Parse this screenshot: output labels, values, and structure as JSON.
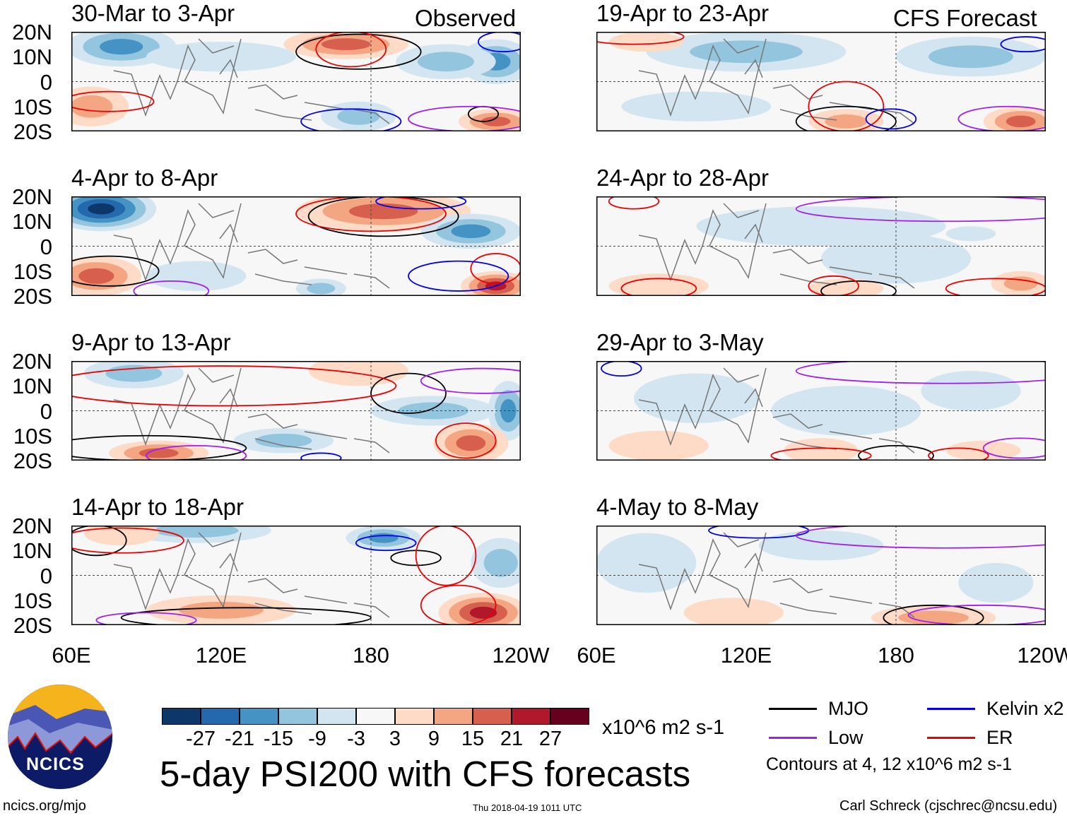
{
  "header": {
    "observed_label": "Observed",
    "forecast_label": "CFS Forecast"
  },
  "axes": {
    "y_ticks": [
      "20N",
      "10N",
      "0",
      "10S",
      "20S"
    ],
    "x_ticks": [
      "60E",
      "120E",
      "180",
      "120W"
    ],
    "lon_range": [
      60,
      240
    ],
    "lat_range": [
      -20,
      20
    ]
  },
  "colors": {
    "levels": [
      "#0c3768",
      "#2468ad",
      "#4493c4",
      "#93c5de",
      "#d2e5f0",
      "#f7f7f7",
      "#fddbc7",
      "#f4a582",
      "#d6604d",
      "#b2182b",
      "#67001f"
    ],
    "mjo": "#000000",
    "kelvin": "#0000ee",
    "low": "#a020f0",
    "er": "#ee0000"
  },
  "chart_data": {
    "type": "heatmap",
    "title": "5-day PSI200 with CFS forecasts",
    "units": "x10^6 m2 s-1",
    "colorbar_ticks": [
      "-27",
      "-21",
      "-15",
      "-9",
      "-3",
      "3",
      "9",
      "15",
      "21",
      "27"
    ],
    "panels": [
      {
        "label": "30-Mar to 3-Apr",
        "column": "observed",
        "anoms": [
          [
            80,
            14,
            22,
            8,
            -15
          ],
          [
            170,
            15,
            25,
            6,
            18
          ],
          [
            230,
            8,
            15,
            9,
            -15
          ],
          [
            210,
            8,
            20,
            7,
            -9
          ],
          [
            68,
            -10,
            15,
            8,
            12
          ],
          [
            230,
            -16,
            15,
            5,
            18
          ],
          [
            175,
            -14,
            15,
            6,
            -9
          ],
          [
            120,
            10,
            30,
            6,
            -3
          ]
        ],
        "contours": [
          [
            "mjo",
            175,
            12,
            25,
            7
          ],
          [
            "mjo",
            225,
            -13,
            6,
            3
          ],
          [
            "er",
            172,
            13,
            14,
            7
          ],
          [
            "er",
            75,
            -8,
            18,
            4
          ],
          [
            "kelvin",
            172,
            -16,
            20,
            5
          ],
          [
            "kelvin",
            233,
            16,
            10,
            4
          ],
          [
            "low",
            220,
            -15,
            25,
            5
          ]
        ]
      },
      {
        "label": "4-Apr to 8-Apr",
        "column": "observed",
        "anoms": [
          [
            72,
            15,
            22,
            9,
            -27
          ],
          [
            185,
            14,
            35,
            8,
            18
          ],
          [
            220,
            6,
            20,
            7,
            -15
          ],
          [
            70,
            -12,
            18,
            8,
            15
          ],
          [
            230,
            -16,
            14,
            6,
            22
          ],
          [
            160,
            -17,
            10,
            4,
            -9
          ],
          [
            110,
            -12,
            20,
            6,
            -3
          ]
        ],
        "contours": [
          [
            "mjo",
            185,
            12,
            30,
            8
          ],
          [
            "mjo",
            75,
            -10,
            20,
            6
          ],
          [
            "er",
            180,
            13,
            30,
            7
          ],
          [
            "er",
            230,
            -9,
            10,
            6
          ],
          [
            "kelvin",
            215,
            -12,
            20,
            6
          ],
          [
            "kelvin",
            200,
            18,
            18,
            3
          ],
          [
            "low",
            100,
            -18,
            15,
            4
          ]
        ]
      },
      {
        "label": "9-Apr to 13-Apr",
        "column": "observed",
        "anoms": [
          [
            85,
            15,
            20,
            6,
            -9
          ],
          [
            175,
            16,
            20,
            6,
            6
          ],
          [
            235,
            0,
            8,
            12,
            -15
          ],
          [
            220,
            -13,
            15,
            8,
            15
          ],
          [
            95,
            -17,
            20,
            5,
            15
          ],
          [
            205,
            0,
            25,
            6,
            -9
          ],
          [
            145,
            -12,
            20,
            5,
            -9
          ]
        ],
        "contours": [
          [
            "mjo",
            195,
            7,
            15,
            8
          ],
          [
            "mjo",
            90,
            -15,
            40,
            5
          ],
          [
            "er",
            120,
            10,
            70,
            8
          ],
          [
            "er",
            218,
            -12,
            12,
            7
          ],
          [
            "low",
            110,
            -18,
            20,
            4
          ],
          [
            "low",
            225,
            12,
            25,
            5
          ],
          [
            "kelvin",
            160,
            -19,
            8,
            2
          ]
        ]
      },
      {
        "label": "14-Apr to 18-Apr",
        "column": "observed",
        "anoms": [
          [
            110,
            18,
            30,
            5,
            -9
          ],
          [
            185,
            15,
            15,
            5,
            -15
          ],
          [
            232,
            5,
            12,
            10,
            -9
          ],
          [
            225,
            -15,
            18,
            8,
            22
          ],
          [
            120,
            -14,
            30,
            6,
            9
          ],
          [
            80,
            17,
            15,
            5,
            6
          ]
        ],
        "contours": [
          [
            "mjo",
            70,
            14,
            12,
            6
          ],
          [
            "mjo",
            198,
            7,
            10,
            3
          ],
          [
            "mjo",
            130,
            -17,
            50,
            4
          ],
          [
            "er",
            80,
            14,
            25,
            5
          ],
          [
            "er",
            210,
            8,
            12,
            12
          ],
          [
            "er",
            215,
            -12,
            15,
            8
          ],
          [
            "kelvin",
            186,
            13,
            12,
            3
          ],
          [
            "low",
            90,
            -18,
            20,
            3
          ]
        ]
      },
      {
        "label": "19-Apr to 23-Apr",
        "column": "forecast",
        "anoms": [
          [
            120,
            12,
            40,
            8,
            -9
          ],
          [
            210,
            10,
            30,
            8,
            -9
          ],
          [
            230,
            -16,
            15,
            6,
            15
          ],
          [
            160,
            -16,
            15,
            5,
            9
          ],
          [
            80,
            16,
            15,
            4,
            6
          ],
          [
            100,
            -10,
            30,
            6,
            -3
          ]
        ],
        "contours": [
          [
            "mjo",
            160,
            -16,
            20,
            6
          ],
          [
            "er",
            160,
            -10,
            15,
            10
          ],
          [
            "er",
            75,
            18,
            20,
            3
          ],
          [
            "kelvin",
            178,
            -15,
            10,
            4
          ],
          [
            "kelvin",
            232,
            15,
            10,
            3
          ],
          [
            "low",
            225,
            -15,
            20,
            5
          ]
        ]
      },
      {
        "label": "24-Apr to 28-Apr",
        "column": "forecast",
        "anoms": [
          [
            150,
            8,
            50,
            8,
            -3
          ],
          [
            180,
            -5,
            30,
            10,
            -3
          ],
          [
            230,
            -15,
            12,
            5,
            9
          ],
          [
            85,
            -16,
            20,
            5,
            6
          ],
          [
            160,
            -17,
            15,
            4,
            6
          ],
          [
            210,
            5,
            10,
            3,
            -6
          ]
        ],
        "contours": [
          [
            "mjo",
            165,
            -18,
            15,
            4
          ],
          [
            "er",
            85,
            -17,
            15,
            4
          ],
          [
            "er",
            155,
            -16,
            10,
            4
          ],
          [
            "er",
            220,
            -17,
            20,
            4
          ],
          [
            "low",
            200,
            15,
            60,
            5
          ],
          [
            "er",
            75,
            18,
            10,
            3
          ]
        ]
      },
      {
        "label": "29-Apr to 3-May",
        "column": "forecast",
        "anoms": [
          [
            100,
            5,
            25,
            10,
            -3
          ],
          [
            160,
            0,
            30,
            10,
            -3
          ],
          [
            210,
            8,
            20,
            8,
            -3
          ],
          [
            85,
            -14,
            20,
            6,
            6
          ],
          [
            150,
            -16,
            15,
            5,
            6
          ],
          [
            215,
            -16,
            15,
            4,
            6
          ]
        ],
        "contours": [
          [
            "mjo",
            180,
            -18,
            15,
            4
          ],
          [
            "er",
            150,
            -18,
            20,
            3
          ],
          [
            "er",
            205,
            -18,
            12,
            3
          ],
          [
            "low",
            200,
            16,
            60,
            5
          ],
          [
            "low",
            230,
            -15,
            15,
            4
          ],
          [
            "kelvin",
            70,
            17,
            8,
            3
          ]
        ]
      },
      {
        "label": "4-May to 8-May",
        "column": "forecast",
        "anoms": [
          [
            80,
            5,
            20,
            12,
            -3
          ],
          [
            220,
            -3,
            15,
            8,
            -3
          ],
          [
            195,
            -17,
            25,
            5,
            9
          ],
          [
            115,
            -15,
            20,
            6,
            3
          ],
          [
            150,
            12,
            25,
            6,
            -3
          ]
        ],
        "contours": [
          [
            "mjo",
            195,
            -17,
            20,
            5
          ],
          [
            "kelvin",
            125,
            18,
            20,
            3
          ],
          [
            "low",
            200,
            16,
            60,
            5
          ],
          [
            "low",
            215,
            -16,
            30,
            4
          ]
        ]
      }
    ]
  },
  "colorbar": {
    "units_label": "x10^6 m2 s-1"
  },
  "legend": {
    "items": [
      {
        "key": "mjo",
        "label": "MJO"
      },
      {
        "key": "kelvin",
        "label": "Kelvin x2"
      },
      {
        "key": "low",
        "label": "Low"
      },
      {
        "key": "er",
        "label": "ER"
      }
    ],
    "note": "Contours at 4, 12 x10^6 m2 s-1"
  },
  "logo": {
    "text": "NCICS"
  },
  "footer": {
    "url": "ncics.org/mjo",
    "timestamp": "Thu 2018-04-19 1011 UTC",
    "author": "Carl Schreck (cjschrec@ncsu.edu)"
  }
}
